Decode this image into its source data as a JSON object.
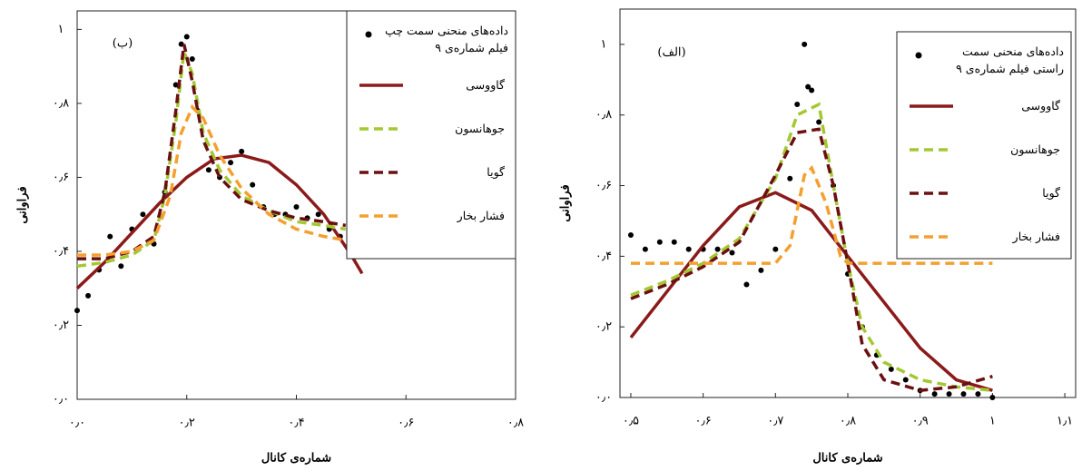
{
  "chart_data": [
    {
      "type": "line",
      "annotation": "(ب)",
      "xlabel": "شماره‌ی کانال",
      "ylabel": "فراوانی",
      "xlim": [
        0,
        0.8
      ],
      "ylim": [
        0,
        1.05
      ],
      "xticks": [
        {
          "value": 0,
          "label": "۰٫۰"
        },
        {
          "value": 0.2,
          "label": "۰٫۲"
        },
        {
          "value": 0.4,
          "label": "۰٫۴"
        },
        {
          "value": 0.6,
          "label": "۰٫۶"
        },
        {
          "value": 0.8,
          "label": "۰٫۸"
        }
      ],
      "yticks": [
        {
          "value": 0,
          "label": "۰٫۰"
        },
        {
          "value": 0.2,
          "label": "۰٫۲"
        },
        {
          "value": 0.4,
          "label": "۰٫۴"
        },
        {
          "value": 0.6,
          "label": "۰٫۶"
        },
        {
          "value": 0.8,
          "label": "۰٫۸"
        },
        {
          "value": 1,
          "label": "۱"
        }
      ],
      "series": [
        {
          "name": "داده‌های منحنی سمت چپ فیلم شماره‌ی ۹",
          "color": "#000000",
          "style": "markers",
          "x": [
            0,
            0.02,
            0.04,
            0.06,
            0.08,
            0.1,
            0.12,
            0.14,
            0.16,
            0.18,
            0.19,
            0.2,
            0.21,
            0.22,
            0.24,
            0.26,
            0.28,
            0.3,
            0.32,
            0.34,
            0.36,
            0.38,
            0.4,
            0.42,
            0.44,
            0.46,
            0.48
          ],
          "values": [
            0.24,
            0.28,
            0.35,
            0.44,
            0.36,
            0.46,
            0.5,
            0.42,
            0.56,
            0.85,
            0.96,
            0.98,
            0.92,
            0.78,
            0.62,
            0.6,
            0.64,
            0.67,
            0.58,
            0.52,
            0.5,
            0.5,
            0.52,
            0.49,
            0.5,
            0.46,
            0.44
          ]
        },
        {
          "name": "گاووسی",
          "color": "#8b1a1a",
          "style": "solid",
          "x": [
            0,
            0.05,
            0.1,
            0.15,
            0.2,
            0.25,
            0.3,
            0.35,
            0.4,
            0.45,
            0.5,
            0.52
          ],
          "values": [
            0.3,
            0.37,
            0.45,
            0.53,
            0.6,
            0.65,
            0.66,
            0.64,
            0.58,
            0.5,
            0.39,
            0.34
          ]
        },
        {
          "name": "جوهانسون",
          "color": "#a4c832",
          "style": "dashed",
          "x": [
            0,
            0.05,
            0.1,
            0.14,
            0.16,
            0.18,
            0.195,
            0.21,
            0.23,
            0.26,
            0.3,
            0.35,
            0.4,
            0.45,
            0.49
          ],
          "values": [
            0.36,
            0.37,
            0.39,
            0.43,
            0.55,
            0.75,
            0.94,
            0.88,
            0.72,
            0.62,
            0.55,
            0.51,
            0.48,
            0.47,
            0.46
          ]
        },
        {
          "name": "گویا",
          "color": "#6b1010",
          "style": "dashed",
          "x": [
            0,
            0.05,
            0.1,
            0.14,
            0.16,
            0.18,
            0.195,
            0.21,
            0.23,
            0.26,
            0.3,
            0.35,
            0.4,
            0.45,
            0.49
          ],
          "values": [
            0.38,
            0.38,
            0.4,
            0.44,
            0.56,
            0.78,
            0.96,
            0.86,
            0.7,
            0.6,
            0.54,
            0.51,
            0.49,
            0.48,
            0.47
          ]
        },
        {
          "name": "فشار بخار",
          "color": "#f4a030",
          "style": "dashed",
          "x": [
            0,
            0.05,
            0.1,
            0.14,
            0.17,
            0.19,
            0.21,
            0.23,
            0.26,
            0.3,
            0.35,
            0.4,
            0.45,
            0.49
          ],
          "values": [
            0.39,
            0.39,
            0.4,
            0.43,
            0.55,
            0.72,
            0.79,
            0.76,
            0.66,
            0.57,
            0.5,
            0.46,
            0.44,
            0.43
          ]
        }
      ]
    },
    {
      "type": "line",
      "annotation": "(الف)",
      "xlabel": "شماره‌ی کانال",
      "ylabel": "فراوانی",
      "xlim": [
        0.485,
        1.115
      ],
      "ylim": [
        0,
        1.1
      ],
      "xticks": [
        {
          "value": 0.5,
          "label": "۰٫۵"
        },
        {
          "value": 0.6,
          "label": "۰٫۶"
        },
        {
          "value": 0.7,
          "label": "۰٫۷"
        },
        {
          "value": 0.8,
          "label": "۰٫۸"
        },
        {
          "value": 0.9,
          "label": "۰٫۹"
        },
        {
          "value": 1,
          "label": "۱"
        },
        {
          "value": 1.1,
          "label": "۱٫۱"
        }
      ],
      "yticks": [
        {
          "value": 0,
          "label": "۰٫۰"
        },
        {
          "value": 0.2,
          "label": "۰٫۲"
        },
        {
          "value": 0.4,
          "label": "۰٫۴"
        },
        {
          "value": 0.6,
          "label": "۰٫۶"
        },
        {
          "value": 0.8,
          "label": "۰٫۸"
        },
        {
          "value": 1,
          "label": "۱"
        }
      ],
      "series": [
        {
          "name": "داده‌های منحنی سمت راستی فیلم شماره‌ی ۹",
          "color": "#000000",
          "style": "markers",
          "x": [
            0.5,
            0.52,
            0.54,
            0.56,
            0.58,
            0.6,
            0.62,
            0.64,
            0.66,
            0.68,
            0.7,
            0.72,
            0.73,
            0.74,
            0.745,
            0.75,
            0.76,
            0.78,
            0.8,
            0.82,
            0.84,
            0.86,
            0.88,
            0.9,
            0.92,
            0.94,
            0.96,
            0.98,
            1
          ],
          "values": [
            0.46,
            0.42,
            0.44,
            0.44,
            0.42,
            0.42,
            0.42,
            0.41,
            0.32,
            0.36,
            0.42,
            0.62,
            0.83,
            1,
            0.88,
            0.87,
            0.78,
            0.6,
            0.35,
            0.2,
            0.12,
            0.08,
            0.05,
            0.02,
            0.01,
            0.01,
            0.01,
            0.01,
            0
          ]
        },
        {
          "name": "گاووسی",
          "color": "#8b1a1a",
          "style": "solid",
          "x": [
            0.5,
            0.55,
            0.6,
            0.65,
            0.7,
            0.75,
            0.8,
            0.85,
            0.9,
            0.95,
            1
          ],
          "values": [
            0.17,
            0.3,
            0.43,
            0.54,
            0.58,
            0.53,
            0.4,
            0.27,
            0.14,
            0.05,
            0.02
          ]
        },
        {
          "name": "جوهانسون",
          "color": "#a4c832",
          "style": "dashed",
          "x": [
            0.5,
            0.55,
            0.6,
            0.65,
            0.7,
            0.73,
            0.76,
            0.78,
            0.8,
            0.82,
            0.85,
            0.9,
            0.95,
            1
          ],
          "values": [
            0.29,
            0.33,
            0.38,
            0.45,
            0.62,
            0.8,
            0.83,
            0.6,
            0.38,
            0.2,
            0.1,
            0.05,
            0.03,
            0.02
          ]
        },
        {
          "name": "گویا",
          "color": "#6b1010",
          "style": "dashed",
          "x": [
            0.5,
            0.55,
            0.6,
            0.65,
            0.7,
            0.73,
            0.76,
            0.78,
            0.8,
            0.82,
            0.85,
            0.9,
            0.95,
            1
          ],
          "values": [
            0.28,
            0.32,
            0.37,
            0.44,
            0.63,
            0.75,
            0.76,
            0.6,
            0.38,
            0.15,
            0.05,
            0.02,
            0.03,
            0.06
          ]
        },
        {
          "name": "فشار بخار",
          "color": "#f4a030",
          "style": "dashed",
          "x": [
            0.5,
            0.6,
            0.7,
            0.72,
            0.74,
            0.75,
            0.77,
            0.79,
            0.8,
            0.85,
            0.95,
            1
          ],
          "values": [
            0.38,
            0.38,
            0.38,
            0.43,
            0.63,
            0.65,
            0.55,
            0.4,
            0.38,
            0.38,
            0.38,
            0.38
          ]
        }
      ]
    }
  ]
}
